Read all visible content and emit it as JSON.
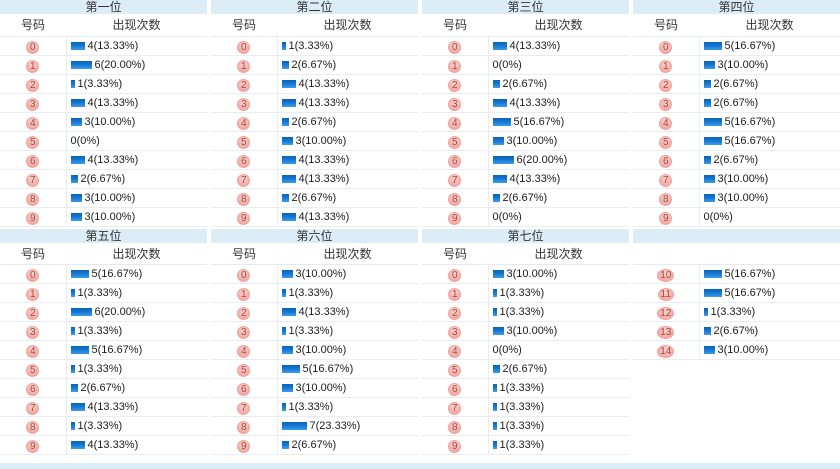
{
  "ui": {
    "col_number_header": "号码",
    "col_count_header": "出现次数",
    "colors": {
      "title_bg": "#dcedf8",
      "bar_blue": "#1576d0",
      "ball_bg": "#f3a8a2",
      "ball_bg_light": "#fbd3d0",
      "ball_border": "#f0a49d",
      "ball_text": "#9c4a44",
      "row_border": "#e7eef3"
    }
  },
  "sections": [
    {
      "title": "第一位",
      "show_headers": true,
      "rows": [
        {
          "num": "0",
          "count": 4,
          "label": "4(13.33%)"
        },
        {
          "num": "1",
          "count": 6,
          "label": "6(20.00%)"
        },
        {
          "num": "2",
          "count": 1,
          "label": "1(3.33%)"
        },
        {
          "num": "3",
          "count": 4,
          "label": "4(13.33%)"
        },
        {
          "num": "4",
          "count": 3,
          "label": "3(10.00%)"
        },
        {
          "num": "5",
          "count": 0,
          "label": "0(0%)"
        },
        {
          "num": "6",
          "count": 4,
          "label": "4(13.33%)"
        },
        {
          "num": "7",
          "count": 2,
          "label": "2(6.67%)"
        },
        {
          "num": "8",
          "count": 3,
          "label": "3(10.00%)"
        },
        {
          "num": "9",
          "count": 3,
          "label": "3(10.00%)"
        }
      ]
    },
    {
      "title": "第二位",
      "show_headers": true,
      "rows": [
        {
          "num": "0",
          "count": 1,
          "label": "1(3.33%)"
        },
        {
          "num": "1",
          "count": 2,
          "label": "2(6.67%)"
        },
        {
          "num": "2",
          "count": 4,
          "label": "4(13.33%)"
        },
        {
          "num": "3",
          "count": 4,
          "label": "4(13.33%)"
        },
        {
          "num": "4",
          "count": 2,
          "label": "2(6.67%)"
        },
        {
          "num": "5",
          "count": 3,
          "label": "3(10.00%)"
        },
        {
          "num": "6",
          "count": 4,
          "label": "4(13.33%)"
        },
        {
          "num": "7",
          "count": 4,
          "label": "4(13.33%)"
        },
        {
          "num": "8",
          "count": 2,
          "label": "2(6.67%)"
        },
        {
          "num": "9",
          "count": 4,
          "label": "4(13.33%)"
        }
      ]
    },
    {
      "title": "第三位",
      "show_headers": true,
      "rows": [
        {
          "num": "0",
          "count": 4,
          "label": "4(13.33%)"
        },
        {
          "num": "1",
          "count": 0,
          "label": "0(0%)"
        },
        {
          "num": "2",
          "count": 2,
          "label": "2(6.67%)"
        },
        {
          "num": "3",
          "count": 4,
          "label": "4(13.33%)"
        },
        {
          "num": "4",
          "count": 5,
          "label": "5(16.67%)"
        },
        {
          "num": "5",
          "count": 3,
          "label": "3(10.00%)"
        },
        {
          "num": "6",
          "count": 6,
          "label": "6(20.00%)"
        },
        {
          "num": "7",
          "count": 4,
          "label": "4(13.33%)"
        },
        {
          "num": "8",
          "count": 2,
          "label": "2(6.67%)"
        },
        {
          "num": "9",
          "count": 0,
          "label": "0(0%)"
        }
      ]
    },
    {
      "title": "第四位",
      "show_headers": true,
      "rows": [
        {
          "num": "0",
          "count": 5,
          "label": "5(16.67%)"
        },
        {
          "num": "1",
          "count": 3,
          "label": "3(10.00%)"
        },
        {
          "num": "2",
          "count": 2,
          "label": "2(6.67%)"
        },
        {
          "num": "3",
          "count": 2,
          "label": "2(6.67%)"
        },
        {
          "num": "4",
          "count": 5,
          "label": "5(16.67%)"
        },
        {
          "num": "5",
          "count": 5,
          "label": "5(16.67%)"
        },
        {
          "num": "6",
          "count": 2,
          "label": "2(6.67%)"
        },
        {
          "num": "7",
          "count": 3,
          "label": "3(10.00%)"
        },
        {
          "num": "8",
          "count": 3,
          "label": "3(10.00%)"
        },
        {
          "num": "9",
          "count": 0,
          "label": "0(0%)"
        }
      ]
    },
    {
      "title": "第五位",
      "show_headers": true,
      "rows": [
        {
          "num": "0",
          "count": 5,
          "label": "5(16.67%)"
        },
        {
          "num": "1",
          "count": 1,
          "label": "1(3.33%)"
        },
        {
          "num": "2",
          "count": 6,
          "label": "6(20.00%)"
        },
        {
          "num": "3",
          "count": 1,
          "label": "1(3.33%)"
        },
        {
          "num": "4",
          "count": 5,
          "label": "5(16.67%)"
        },
        {
          "num": "5",
          "count": 1,
          "label": "1(3.33%)"
        },
        {
          "num": "6",
          "count": 2,
          "label": "2(6.67%)"
        },
        {
          "num": "7",
          "count": 4,
          "label": "4(13.33%)"
        },
        {
          "num": "8",
          "count": 1,
          "label": "1(3.33%)"
        },
        {
          "num": "9",
          "count": 4,
          "label": "4(13.33%)"
        }
      ]
    },
    {
      "title": "第六位",
      "show_headers": true,
      "rows": [
        {
          "num": "0",
          "count": 3,
          "label": "3(10.00%)"
        },
        {
          "num": "1",
          "count": 1,
          "label": "1(3.33%)"
        },
        {
          "num": "2",
          "count": 4,
          "label": "4(13.33%)"
        },
        {
          "num": "3",
          "count": 1,
          "label": "1(3.33%)"
        },
        {
          "num": "4",
          "count": 3,
          "label": "3(10.00%)"
        },
        {
          "num": "5",
          "count": 5,
          "label": "5(16.67%)"
        },
        {
          "num": "6",
          "count": 3,
          "label": "3(10.00%)"
        },
        {
          "num": "7",
          "count": 1,
          "label": "1(3.33%)"
        },
        {
          "num": "8",
          "count": 7,
          "label": "7(23.33%)"
        },
        {
          "num": "9",
          "count": 2,
          "label": "2(6.67%)"
        }
      ]
    },
    {
      "title": "第七位",
      "show_headers": true,
      "rows": [
        {
          "num": "0",
          "count": 3,
          "label": "3(10.00%)"
        },
        {
          "num": "1",
          "count": 1,
          "label": "1(3.33%)"
        },
        {
          "num": "2",
          "count": 1,
          "label": "1(3.33%)"
        },
        {
          "num": "3",
          "count": 3,
          "label": "3(10.00%)"
        },
        {
          "num": "4",
          "count": 0,
          "label": "0(0%)"
        },
        {
          "num": "5",
          "count": 2,
          "label": "2(6.67%)"
        },
        {
          "num": "6",
          "count": 1,
          "label": "1(3.33%)"
        },
        {
          "num": "7",
          "count": 1,
          "label": "1(3.33%)"
        },
        {
          "num": "8",
          "count": 1,
          "label": "1(3.33%)"
        },
        {
          "num": "9",
          "count": 1,
          "label": "1(3.33%)"
        }
      ]
    },
    {
      "title": "",
      "show_headers": false,
      "rows": [
        {
          "num": "10",
          "count": 5,
          "label": "5(16.67%)"
        },
        {
          "num": "11",
          "count": 5,
          "label": "5(16.67%)"
        },
        {
          "num": "12",
          "count": 1,
          "label": "1(3.33%)"
        },
        {
          "num": "13",
          "count": 2,
          "label": "2(6.67%)"
        },
        {
          "num": "14",
          "count": 3,
          "label": "3(10.00%)"
        }
      ]
    }
  ],
  "chart_data": [
    {
      "type": "bar",
      "title": "第一位",
      "categories": [
        "0",
        "1",
        "2",
        "3",
        "4",
        "5",
        "6",
        "7",
        "8",
        "9"
      ],
      "values": [
        4,
        6,
        1,
        4,
        3,
        0,
        4,
        2,
        3,
        3
      ],
      "value_labels": [
        "4(13.33%)",
        "6(20.00%)",
        "1(3.33%)",
        "4(13.33%)",
        "3(10.00%)",
        "0(0%)",
        "4(13.33%)",
        "2(6.67%)",
        "3(10.00%)",
        "3(10.00%)"
      ],
      "xlabel": "号码",
      "ylabel": "出现次数",
      "bar_color": "#1576d0",
      "legend": "none",
      "grid": false
    },
    {
      "type": "bar",
      "title": "第二位",
      "categories": [
        "0",
        "1",
        "2",
        "3",
        "4",
        "5",
        "6",
        "7",
        "8",
        "9"
      ],
      "values": [
        1,
        2,
        4,
        4,
        2,
        3,
        4,
        4,
        2,
        4
      ],
      "value_labels": [
        "1(3.33%)",
        "2(6.67%)",
        "4(13.33%)",
        "4(13.33%)",
        "2(6.67%)",
        "3(10.00%)",
        "4(13.33%)",
        "4(13.33%)",
        "2(6.67%)",
        "4(13.33%)"
      ],
      "xlabel": "号码",
      "ylabel": "出现次数",
      "bar_color": "#1576d0",
      "legend": "none",
      "grid": false
    },
    {
      "type": "bar",
      "title": "第三位",
      "categories": [
        "0",
        "1",
        "2",
        "3",
        "4",
        "5",
        "6",
        "7",
        "8",
        "9"
      ],
      "values": [
        4,
        0,
        2,
        4,
        5,
        3,
        6,
        4,
        2,
        0
      ],
      "value_labels": [
        "4(13.33%)",
        "0(0%)",
        "2(6.67%)",
        "4(13.33%)",
        "5(16.67%)",
        "3(10.00%)",
        "6(20.00%)",
        "4(13.33%)",
        "2(6.67%)",
        "0(0%)"
      ],
      "xlabel": "号码",
      "ylabel": "出现次数",
      "bar_color": "#1576d0",
      "legend": "none",
      "grid": false
    },
    {
      "type": "bar",
      "title": "第四位",
      "categories": [
        "0",
        "1",
        "2",
        "3",
        "4",
        "5",
        "6",
        "7",
        "8",
        "9"
      ],
      "values": [
        5,
        3,
        2,
        2,
        5,
        5,
        2,
        3,
        3,
        0
      ],
      "value_labels": [
        "5(16.67%)",
        "3(10.00%)",
        "2(6.67%)",
        "2(6.67%)",
        "5(16.67%)",
        "5(16.67%)",
        "2(6.67%)",
        "3(10.00%)",
        "3(10.00%)",
        "0(0%)"
      ],
      "xlabel": "号码",
      "ylabel": "出现次数",
      "bar_color": "#1576d0",
      "legend": "none",
      "grid": false
    },
    {
      "type": "bar",
      "title": "第五位",
      "categories": [
        "0",
        "1",
        "2",
        "3",
        "4",
        "5",
        "6",
        "7",
        "8",
        "9"
      ],
      "values": [
        5,
        1,
        6,
        1,
        5,
        1,
        2,
        4,
        1,
        4
      ],
      "value_labels": [
        "5(16.67%)",
        "1(3.33%)",
        "6(20.00%)",
        "1(3.33%)",
        "5(16.67%)",
        "1(3.33%)",
        "2(6.67%)",
        "4(13.33%)",
        "1(3.33%)",
        "4(13.33%)"
      ],
      "xlabel": "号码",
      "ylabel": "出现次数",
      "bar_color": "#1576d0",
      "legend": "none",
      "grid": false
    },
    {
      "type": "bar",
      "title": "第六位",
      "categories": [
        "0",
        "1",
        "2",
        "3",
        "4",
        "5",
        "6",
        "7",
        "8",
        "9"
      ],
      "values": [
        3,
        1,
        4,
        1,
        3,
        5,
        3,
        1,
        7,
        2
      ],
      "value_labels": [
        "3(10.00%)",
        "1(3.33%)",
        "4(13.33%)",
        "1(3.33%)",
        "3(10.00%)",
        "5(16.67%)",
        "3(10.00%)",
        "1(3.33%)",
        "7(23.33%)",
        "2(6.67%)"
      ],
      "xlabel": "号码",
      "ylabel": "出现次数",
      "bar_color": "#1576d0",
      "legend": "none",
      "grid": false
    },
    {
      "type": "bar",
      "title": "第七位",
      "categories": [
        "0",
        "1",
        "2",
        "3",
        "4",
        "5",
        "6",
        "7",
        "8",
        "9",
        "10",
        "11",
        "12",
        "13",
        "14"
      ],
      "values": [
        3,
        1,
        1,
        3,
        0,
        2,
        1,
        1,
        1,
        1,
        5,
        5,
        1,
        2,
        3
      ],
      "value_labels": [
        "3(10.00%)",
        "1(3.33%)",
        "1(3.33%)",
        "3(10.00%)",
        "0(0%)",
        "2(6.67%)",
        "1(3.33%)",
        "1(3.33%)",
        "1(3.33%)",
        "1(3.33%)",
        "5(16.67%)",
        "5(16.67%)",
        "1(3.33%)",
        "2(6.67%)",
        "3(10.00%)"
      ],
      "xlabel": "号码",
      "ylabel": "出现次数",
      "bar_color": "#1576d0",
      "legend": "none",
      "grid": false
    }
  ]
}
